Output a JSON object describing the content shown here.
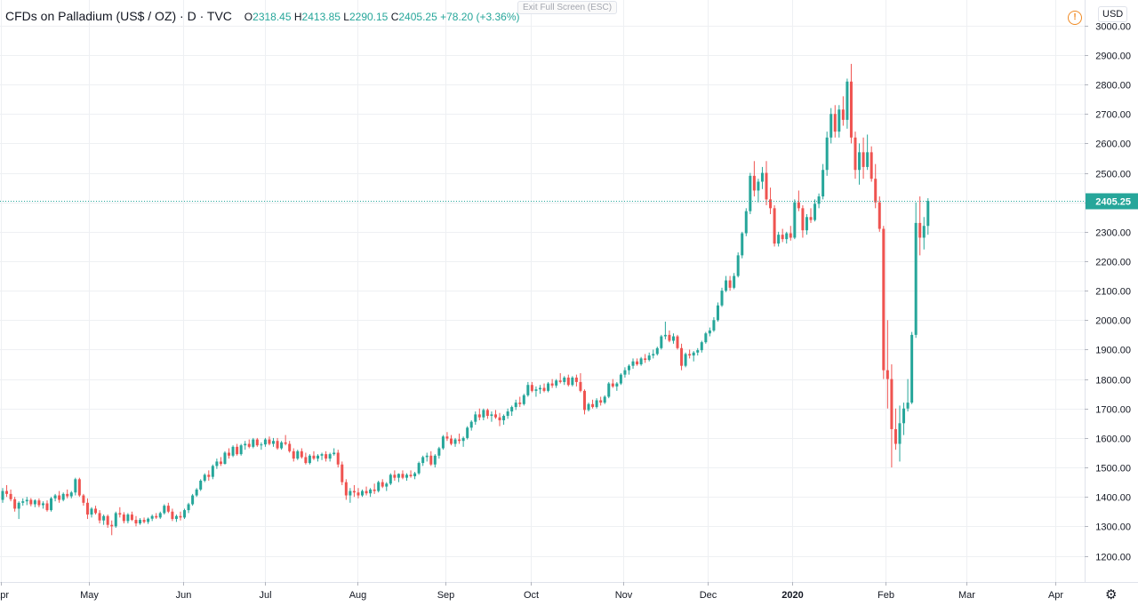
{
  "legend": {
    "symbol": "CFDs on Palladium (US$ / OZ) · D · TVC",
    "o_key": "O",
    "o_val": "2318.45",
    "h_key": "H",
    "h_val": "2413.85",
    "l_key": "L",
    "l_val": "2290.15",
    "c_key": "C",
    "c_val": "2405.25",
    "change": "+78.20 (+3.36%)"
  },
  "toolbar": {
    "exit_fullscreen": "Exit Full Screen (ESC)",
    "currency": "USD",
    "alert_glyph": "!",
    "settings_glyph": "⚙"
  },
  "colors": {
    "up": "#26a69a",
    "down": "#ef5350",
    "grid": "#eef0f3",
    "price_line": "#26a69a",
    "text": "#131722"
  },
  "chart_data": {
    "type": "candlestick",
    "title": "CFDs on Palladium (US$ / OZ)",
    "interval": "D",
    "source": "TVC",
    "currency": "USD",
    "last_price": 2405.25,
    "last_price_label": "2405.25",
    "ylim": [
      1120,
      3020
    ],
    "y_ticks": [
      1200,
      1300,
      1400,
      1500,
      1600,
      1700,
      1800,
      1900,
      2000,
      2100,
      2200,
      2300,
      2400,
      2500,
      2600,
      2700,
      2800,
      2900,
      3000
    ],
    "y_tick_labels": [
      "1200.00",
      "1300.00",
      "1400.00",
      "1500.00",
      "1600.00",
      "1700.00",
      "1800.00",
      "1900.00",
      "2000.00",
      "2100.00",
      "2200.00",
      "2300.00",
      "2400.00",
      "2500.00",
      "2600.00",
      "2700.00",
      "2800.00",
      "2900.00",
      "3000.00"
    ],
    "x_ticks": [
      {
        "label": "Apr",
        "bold": false,
        "index": -0.5
      },
      {
        "label": "May",
        "bold": false,
        "index": 21.4
      },
      {
        "label": "Jun",
        "bold": false,
        "index": 44.6
      },
      {
        "label": "Jul",
        "bold": false,
        "index": 64.8
      },
      {
        "label": "Aug",
        "bold": false,
        "index": 87.7
      },
      {
        "label": "Sep",
        "bold": false,
        "index": 109.6
      },
      {
        "label": "Oct",
        "bold": false,
        "index": 130.6
      },
      {
        "label": "Nov",
        "bold": false,
        "index": 153.5
      },
      {
        "label": "Dec",
        "bold": false,
        "index": 174.5
      },
      {
        "label": "2020",
        "bold": true,
        "index": 195.4
      },
      {
        "label": "Feb",
        "bold": false,
        "index": 218.4
      },
      {
        "label": "Mar",
        "bold": false,
        "index": 238.5
      },
      {
        "label": "Apr",
        "bold": false,
        "index": 260.4
      }
    ],
    "candles": [
      [
        1390,
        1430,
        1380,
        1420
      ],
      [
        1420,
        1440,
        1400,
        1410
      ],
      [
        1410,
        1425,
        1385,
        1392
      ],
      [
        1392,
        1400,
        1350,
        1360
      ],
      [
        1360,
        1385,
        1325,
        1380
      ],
      [
        1380,
        1395,
        1370,
        1385
      ],
      [
        1385,
        1400,
        1372,
        1390
      ],
      [
        1390,
        1396,
        1368,
        1375
      ],
      [
        1375,
        1392,
        1365,
        1388
      ],
      [
        1388,
        1395,
        1365,
        1372
      ],
      [
        1372,
        1385,
        1360,
        1378
      ],
      [
        1378,
        1388,
        1350,
        1355
      ],
      [
        1355,
        1400,
        1350,
        1395
      ],
      [
        1395,
        1410,
        1385,
        1405
      ],
      [
        1405,
        1420,
        1380,
        1390
      ],
      [
        1390,
        1415,
        1385,
        1410
      ],
      [
        1410,
        1425,
        1395,
        1402
      ],
      [
        1402,
        1420,
        1395,
        1415
      ],
      [
        1415,
        1465,
        1405,
        1460
      ],
      [
        1460,
        1465,
        1400,
        1405
      ],
      [
        1405,
        1410,
        1370,
        1380
      ],
      [
        1380,
        1395,
        1325,
        1340
      ],
      [
        1340,
        1365,
        1330,
        1360
      ],
      [
        1360,
        1370,
        1340,
        1345
      ],
      [
        1345,
        1355,
        1310,
        1320
      ],
      [
        1320,
        1340,
        1305,
        1335
      ],
      [
        1335,
        1340,
        1295,
        1305
      ],
      [
        1305,
        1320,
        1270,
        1300
      ],
      [
        1300,
        1350,
        1295,
        1345
      ],
      [
        1345,
        1365,
        1330,
        1340
      ],
      [
        1340,
        1348,
        1310,
        1318
      ],
      [
        1318,
        1345,
        1310,
        1340
      ],
      [
        1340,
        1350,
        1318,
        1322
      ],
      [
        1322,
        1335,
        1300,
        1310
      ],
      [
        1310,
        1328,
        1305,
        1322
      ],
      [
        1322,
        1330,
        1310,
        1315
      ],
      [
        1315,
        1330,
        1308,
        1326
      ],
      [
        1326,
        1340,
        1318,
        1335
      ],
      [
        1335,
        1345,
        1325,
        1330
      ],
      [
        1330,
        1350,
        1325,
        1345
      ],
      [
        1345,
        1375,
        1340,
        1370
      ],
      [
        1370,
        1380,
        1345,
        1350
      ],
      [
        1350,
        1360,
        1318,
        1325
      ],
      [
        1325,
        1340,
        1315,
        1335
      ],
      [
        1335,
        1350,
        1320,
        1330
      ],
      [
        1330,
        1360,
        1325,
        1355
      ],
      [
        1355,
        1380,
        1345,
        1375
      ],
      [
        1375,
        1410,
        1370,
        1405
      ],
      [
        1405,
        1430,
        1400,
        1425
      ],
      [
        1425,
        1460,
        1420,
        1455
      ],
      [
        1455,
        1480,
        1450,
        1475
      ],
      [
        1475,
        1490,
        1455,
        1468
      ],
      [
        1468,
        1510,
        1460,
        1505
      ],
      [
        1505,
        1530,
        1495,
        1520
      ],
      [
        1520,
        1535,
        1505,
        1512
      ],
      [
        1512,
        1555,
        1510,
        1550
      ],
      [
        1550,
        1565,
        1530,
        1540
      ],
      [
        1540,
        1575,
        1535,
        1570
      ],
      [
        1570,
        1580,
        1540,
        1545
      ],
      [
        1545,
        1580,
        1540,
        1575
      ],
      [
        1575,
        1590,
        1560,
        1580
      ],
      [
        1580,
        1595,
        1565,
        1570
      ],
      [
        1570,
        1600,
        1565,
        1595
      ],
      [
        1595,
        1600,
        1570,
        1575
      ],
      [
        1575,
        1585,
        1560,
        1578
      ],
      [
        1578,
        1600,
        1570,
        1595
      ],
      [
        1595,
        1605,
        1575,
        1580
      ],
      [
        1580,
        1600,
        1570,
        1590
      ],
      [
        1590,
        1600,
        1560,
        1565
      ],
      [
        1565,
        1590,
        1560,
        1585
      ],
      [
        1585,
        1610,
        1575,
        1580
      ],
      [
        1580,
        1590,
        1550,
        1555
      ],
      [
        1555,
        1565,
        1520,
        1530
      ],
      [
        1530,
        1560,
        1525,
        1555
      ],
      [
        1555,
        1565,
        1530,
        1535
      ],
      [
        1535,
        1550,
        1510,
        1515
      ],
      [
        1515,
        1545,
        1510,
        1540
      ],
      [
        1540,
        1555,
        1525,
        1530
      ],
      [
        1530,
        1545,
        1520,
        1540
      ],
      [
        1540,
        1550,
        1525,
        1545
      ],
      [
        1545,
        1555,
        1520,
        1530
      ],
      [
        1530,
        1550,
        1520,
        1545
      ],
      [
        1545,
        1565,
        1540,
        1550
      ],
      [
        1550,
        1560,
        1500,
        1510
      ],
      [
        1510,
        1520,
        1440,
        1450
      ],
      [
        1450,
        1460,
        1390,
        1405
      ],
      [
        1405,
        1430,
        1380,
        1420
      ],
      [
        1420,
        1440,
        1400,
        1415
      ],
      [
        1415,
        1430,
        1395,
        1405
      ],
      [
        1405,
        1425,
        1400,
        1420
      ],
      [
        1420,
        1435,
        1405,
        1412
      ],
      [
        1412,
        1430,
        1400,
        1425
      ],
      [
        1425,
        1445,
        1410,
        1420
      ],
      [
        1420,
        1455,
        1415,
        1450
      ],
      [
        1450,
        1460,
        1430,
        1435
      ],
      [
        1435,
        1450,
        1420,
        1445
      ],
      [
        1445,
        1480,
        1440,
        1475
      ],
      [
        1475,
        1490,
        1455,
        1465
      ],
      [
        1465,
        1480,
        1450,
        1478
      ],
      [
        1478,
        1490,
        1460,
        1465
      ],
      [
        1465,
        1480,
        1455,
        1475
      ],
      [
        1475,
        1490,
        1465,
        1470
      ],
      [
        1470,
        1485,
        1460,
        1480
      ],
      [
        1480,
        1520,
        1475,
        1515
      ],
      [
        1515,
        1540,
        1505,
        1535
      ],
      [
        1535,
        1550,
        1520,
        1540
      ],
      [
        1540,
        1555,
        1505,
        1510
      ],
      [
        1510,
        1545,
        1500,
        1540
      ],
      [
        1540,
        1570,
        1530,
        1565
      ],
      [
        1565,
        1610,
        1560,
        1605
      ],
      [
        1605,
        1620,
        1590,
        1598
      ],
      [
        1598,
        1610,
        1575,
        1580
      ],
      [
        1580,
        1600,
        1570,
        1595
      ],
      [
        1595,
        1615,
        1580,
        1590
      ],
      [
        1590,
        1605,
        1570,
        1600
      ],
      [
        1600,
        1640,
        1595,
        1635
      ],
      [
        1635,
        1660,
        1625,
        1655
      ],
      [
        1655,
        1690,
        1645,
        1680
      ],
      [
        1680,
        1700,
        1660,
        1670
      ],
      [
        1670,
        1700,
        1660,
        1695
      ],
      [
        1695,
        1700,
        1665,
        1675
      ],
      [
        1675,
        1690,
        1655,
        1680
      ],
      [
        1680,
        1695,
        1665,
        1670
      ],
      [
        1670,
        1685,
        1640,
        1660
      ],
      [
        1660,
        1680,
        1645,
        1675
      ],
      [
        1675,
        1700,
        1665,
        1690
      ],
      [
        1690,
        1710,
        1675,
        1705
      ],
      [
        1705,
        1730,
        1695,
        1720
      ],
      [
        1720,
        1740,
        1705,
        1715
      ],
      [
        1715,
        1750,
        1710,
        1745
      ],
      [
        1745,
        1790,
        1740,
        1780
      ],
      [
        1780,
        1790,
        1755,
        1760
      ],
      [
        1760,
        1775,
        1740,
        1765
      ],
      [
        1765,
        1780,
        1750,
        1770
      ],
      [
        1770,
        1785,
        1755,
        1760
      ],
      [
        1760,
        1790,
        1755,
        1785
      ],
      [
        1785,
        1800,
        1770,
        1778
      ],
      [
        1778,
        1800,
        1770,
        1795
      ],
      [
        1795,
        1820,
        1785,
        1790
      ],
      [
        1790,
        1810,
        1780,
        1805
      ],
      [
        1805,
        1815,
        1775,
        1780
      ],
      [
        1780,
        1810,
        1775,
        1805
      ],
      [
        1805,
        1815,
        1775,
        1790
      ],
      [
        1790,
        1820,
        1755,
        1760
      ],
      [
        1760,
        1765,
        1680,
        1695
      ],
      [
        1695,
        1720,
        1690,
        1715
      ],
      [
        1715,
        1730,
        1700,
        1705
      ],
      [
        1705,
        1735,
        1700,
        1728
      ],
      [
        1728,
        1740,
        1710,
        1720
      ],
      [
        1720,
        1745,
        1715,
        1740
      ],
      [
        1740,
        1790,
        1735,
        1785
      ],
      [
        1785,
        1800,
        1770,
        1775
      ],
      [
        1775,
        1790,
        1760,
        1785
      ],
      [
        1785,
        1820,
        1780,
        1815
      ],
      [
        1815,
        1840,
        1805,
        1830
      ],
      [
        1830,
        1850,
        1815,
        1845
      ],
      [
        1845,
        1870,
        1835,
        1860
      ],
      [
        1860,
        1870,
        1845,
        1850
      ],
      [
        1850,
        1875,
        1845,
        1870
      ],
      [
        1870,
        1885,
        1855,
        1865
      ],
      [
        1865,
        1890,
        1860,
        1880
      ],
      [
        1880,
        1900,
        1870,
        1885
      ],
      [
        1885,
        1910,
        1880,
        1905
      ],
      [
        1905,
        1950,
        1900,
        1945
      ],
      [
        1945,
        1995,
        1935,
        1950
      ],
      [
        1950,
        1965,
        1925,
        1930
      ],
      [
        1930,
        1955,
        1920,
        1945
      ],
      [
        1945,
        1950,
        1900,
        1905
      ],
      [
        1905,
        1920,
        1830,
        1845
      ],
      [
        1845,
        1890,
        1840,
        1885
      ],
      [
        1885,
        1900,
        1870,
        1880
      ],
      [
        1880,
        1895,
        1860,
        1890
      ],
      [
        1890,
        1905,
        1880,
        1898
      ],
      [
        1898,
        1930,
        1890,
        1925
      ],
      [
        1925,
        1960,
        1920,
        1955
      ],
      [
        1955,
        1975,
        1945,
        1965
      ],
      [
        1965,
        2010,
        1960,
        2000
      ],
      [
        2000,
        2060,
        1995,
        2050
      ],
      [
        2050,
        2110,
        2045,
        2100
      ],
      [
        2100,
        2150,
        2095,
        2135
      ],
      [
        2135,
        2150,
        2100,
        2110
      ],
      [
        2110,
        2160,
        2105,
        2150
      ],
      [
        2150,
        2230,
        2145,
        2220
      ],
      [
        2220,
        2300,
        2210,
        2295
      ],
      [
        2295,
        2380,
        2285,
        2370
      ],
      [
        2370,
        2500,
        2360,
        2490
      ],
      [
        2490,
        2540,
        2420,
        2440
      ],
      [
        2440,
        2480,
        2400,
        2470
      ],
      [
        2470,
        2520,
        2445,
        2500
      ],
      [
        2500,
        2540,
        2390,
        2410
      ],
      [
        2410,
        2450,
        2360,
        2380
      ],
      [
        2380,
        2390,
        2250,
        2260
      ],
      [
        2260,
        2300,
        2250,
        2290
      ],
      [
        2290,
        2310,
        2265,
        2275
      ],
      [
        2275,
        2300,
        2260,
        2295
      ],
      [
        2295,
        2320,
        2270,
        2280
      ],
      [
        2280,
        2410,
        2275,
        2400
      ],
      [
        2400,
        2440,
        2370,
        2380
      ],
      [
        2380,
        2390,
        2280,
        2305
      ],
      [
        2305,
        2360,
        2290,
        2350
      ],
      [
        2350,
        2380,
        2330,
        2340
      ],
      [
        2340,
        2410,
        2335,
        2395
      ],
      [
        2395,
        2430,
        2380,
        2420
      ],
      [
        2420,
        2530,
        2410,
        2510
      ],
      [
        2510,
        2640,
        2490,
        2620
      ],
      [
        2620,
        2720,
        2600,
        2700
      ],
      [
        2700,
        2730,
        2620,
        2640
      ],
      [
        2640,
        2730,
        2620,
        2715
      ],
      [
        2715,
        2760,
        2660,
        2680
      ],
      [
        2680,
        2820,
        2650,
        2810
      ],
      [
        2810,
        2870,
        2600,
        2620
      ],
      [
        2620,
        2640,
        2480,
        2510
      ],
      [
        2510,
        2600,
        2460,
        2570
      ],
      [
        2570,
        2620,
        2480,
        2520
      ],
      [
        2520,
        2630,
        2510,
        2570
      ],
      [
        2570,
        2590,
        2470,
        2480
      ],
      [
        2480,
        2530,
        2380,
        2400
      ],
      [
        2400,
        2420,
        2300,
        2310
      ],
      [
        2310,
        2320,
        1800,
        1830
      ],
      [
        1830,
        2000,
        1700,
        1800
      ],
      [
        1800,
        1850,
        1500,
        1630
      ],
      [
        1630,
        1700,
        1560,
        1580
      ],
      [
        1580,
        1710,
        1520,
        1650
      ],
      [
        1650,
        1720,
        1610,
        1700
      ],
      [
        1700,
        1800,
        1690,
        1720
      ],
      [
        1720,
        1960,
        1715,
        1950
      ],
      [
        1950,
        2400,
        1940,
        2330
      ],
      [
        2330,
        2420,
        2220,
        2280
      ],
      [
        2280,
        2350,
        2240,
        2320
      ],
      [
        2320,
        2414,
        2290,
        2405
      ]
    ]
  }
}
